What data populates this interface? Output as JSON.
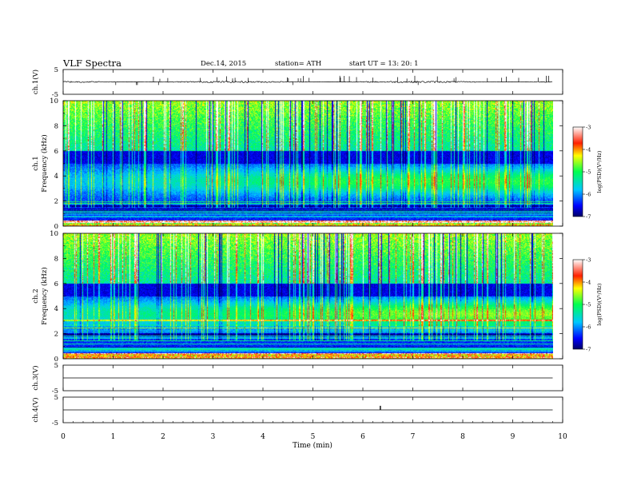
{
  "header": {
    "title": "VLF  Spectra",
    "date": "Dec.14, 2015",
    "station": "station= ATH",
    "start": "start  UT  =    13: 20: 1"
  },
  "chart_data": [
    {
      "type": "line",
      "panel": "ch1-waveform",
      "ylabel": "ch.1(V)",
      "ylim": [
        -5,
        5
      ],
      "yticks": [
        "5",
        "-5"
      ],
      "series": [
        {
          "baseline_v": 0.0,
          "noise_v": 0.35,
          "spike_v": 2.5
        }
      ]
    },
    {
      "type": "heatmap",
      "panel": "ch1-spectrogram",
      "ylabel_top": "ch.1",
      "ylabel": "Frequency  (kHz)",
      "ylim": [
        0,
        10
      ],
      "yticks": [
        "0",
        "2",
        "4",
        "6",
        "8",
        "10"
      ],
      "colorbar": {
        "label": "log(PSD)(V²/Hz)",
        "range": [
          -7,
          -3
        ],
        "ticks": [
          "-3",
          "-4",
          "-5",
          "-6",
          "-7"
        ]
      },
      "bands_khz": [
        [
          0.0,
          0.5,
          "mixed-horizontal-lines"
        ],
        [
          0.5,
          2.0,
          "dark-blue-with-lines"
        ],
        [
          2.0,
          5.0,
          "blue-cyan-emission"
        ],
        [
          5.0,
          6.0,
          "dark-blue"
        ],
        [
          6.0,
          10.0,
          "green-yellow-sferics"
        ]
      ]
    },
    {
      "type": "heatmap",
      "panel": "ch2-spectrogram",
      "ylabel_top": "ch.2",
      "ylabel": "Frequency  (kHz)",
      "ylim": [
        0,
        10
      ],
      "yticks": [
        "0",
        "2",
        "4",
        "6",
        "8",
        "10"
      ],
      "colorbar": {
        "label": "log(PSD)(V²/Hz)",
        "range": [
          -7,
          -3
        ],
        "ticks": [
          "-3",
          "-4",
          "-5",
          "-6",
          "-7"
        ]
      },
      "bands_khz": [
        [
          0.0,
          0.5,
          "mixed-horizontal-lines"
        ],
        [
          0.5,
          2.5,
          "dark-blue-with-lines"
        ],
        [
          2.5,
          5.0,
          "cyan-green-emission"
        ],
        [
          5.0,
          6.0,
          "dark-blue"
        ],
        [
          6.0,
          10.0,
          "green-yellow-sferics"
        ]
      ]
    },
    {
      "type": "line",
      "panel": "ch3-waveform",
      "ylabel": "ch.3(V)",
      "ylim": [
        -5,
        5
      ],
      "yticks": [
        "5",
        "-5"
      ],
      "series": [
        {
          "baseline_v": 0.0
        }
      ]
    },
    {
      "type": "line",
      "panel": "ch4-waveform",
      "ylabel": "ch.4(V)",
      "ylim": [
        -5,
        5
      ],
      "yticks": [
        "5",
        "-5"
      ],
      "series": [
        {
          "baseline_v": 0.0,
          "spike_at_min": 6.35,
          "spike_v": 0.4
        }
      ]
    }
  ],
  "x_axis": {
    "label": "Time  (min)",
    "xlim": [
      0,
      10
    ],
    "data_end_min": 9.8,
    "ticks": [
      "0",
      "1",
      "2",
      "3",
      "4",
      "5",
      "6",
      "7",
      "8",
      "9",
      "10"
    ]
  }
}
